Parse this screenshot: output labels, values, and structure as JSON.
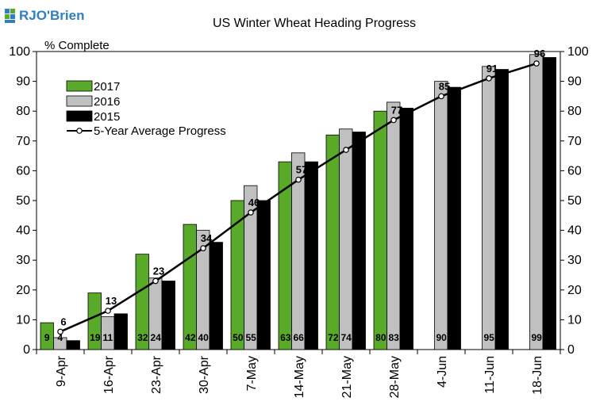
{
  "brand": {
    "logo_text": "RJO'Brien",
    "logo_color": "#2f7fc1"
  },
  "chart_data": {
    "type": "bar",
    "title": "US Winter Wheat Heading Progress",
    "ylabel": "% Complete",
    "ylim": [
      0,
      100
    ],
    "yticks": [
      0,
      10,
      20,
      30,
      40,
      50,
      60,
      70,
      80,
      90,
      100
    ],
    "grid": false,
    "legend_position": "top-left",
    "categories": [
      "9-Apr",
      "16-Apr",
      "23-Apr",
      "30-Apr",
      "7-May",
      "14-May",
      "21-May",
      "28-May",
      "4-Jun",
      "11-Jun",
      "18-Jun"
    ],
    "series": [
      {
        "name": "2017",
        "color": "#5aaa2a",
        "values": [
          9,
          19,
          32,
          42,
          50,
          63,
          72,
          80,
          null,
          null,
          null
        ],
        "labels": [
          "9",
          "19",
          "32",
          "42",
          "50",
          "63",
          "72",
          "80",
          "",
          "",
          ""
        ]
      },
      {
        "name": "2016",
        "color": "#c0c0c0",
        "values": [
          4,
          11,
          24,
          40,
          55,
          66,
          74,
          83,
          90,
          95,
          99
        ],
        "labels": [
          "4",
          "11",
          "24",
          "40",
          "55",
          "66",
          "74",
          "83",
          "90",
          "95",
          "99"
        ]
      },
      {
        "name": "2015",
        "color": "#000000",
        "values": [
          3,
          12,
          23,
          36,
          50,
          63,
          73,
          81,
          88,
          94,
          98
        ]
      }
    ],
    "line": {
      "name": "5-Year Average Progress",
      "values": [
        6,
        13,
        23,
        34,
        46,
        57,
        67,
        77,
        85,
        91,
        96
      ],
      "labels": [
        "6",
        "13",
        "23",
        "34",
        "46",
        "57",
        "",
        "77",
        "85",
        "91",
        "96"
      ]
    }
  }
}
